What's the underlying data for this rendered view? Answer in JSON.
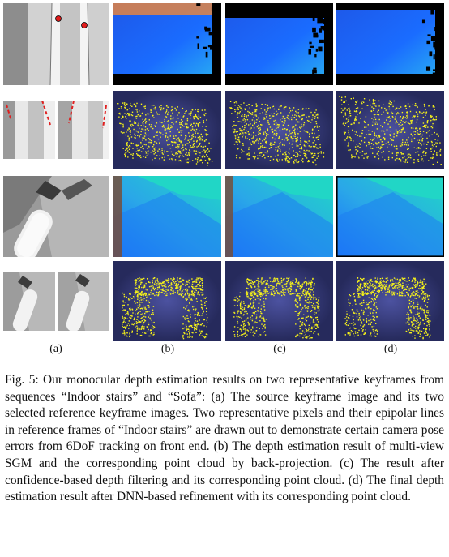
{
  "figure": {
    "subfigure_labels": [
      "(a)",
      "(b)",
      "(c)",
      "(d)"
    ]
  },
  "caption": {
    "text": "Fig. 5: Our monocular depth estimation results on two representative keyframes from sequences “Indoor stairs” and “Sofa”: (a) The source keyframe image and its two selected reference keyframe images. Two representative pixels and their epipolar lines in reference frames of “Indoor stairs” are drawn out to demonstrate certain camera pose errors from 6DoF tracking on front end. (b) The depth estimation result of multi-view SGM and the corresponding point cloud by back-projection. (c) The result after confidence-based depth filtering and its corresponding point cloud. (d) The final depth estimation result after DNN-based refinement with its corresponding point cloud."
  },
  "colors": {
    "depth_near": "#1a6cff",
    "depth_far": "#21d6c6",
    "point_cloud": "#f6f21a",
    "cloud_bg": "#3b3f80",
    "epipolar_red": "#e02020"
  }
}
